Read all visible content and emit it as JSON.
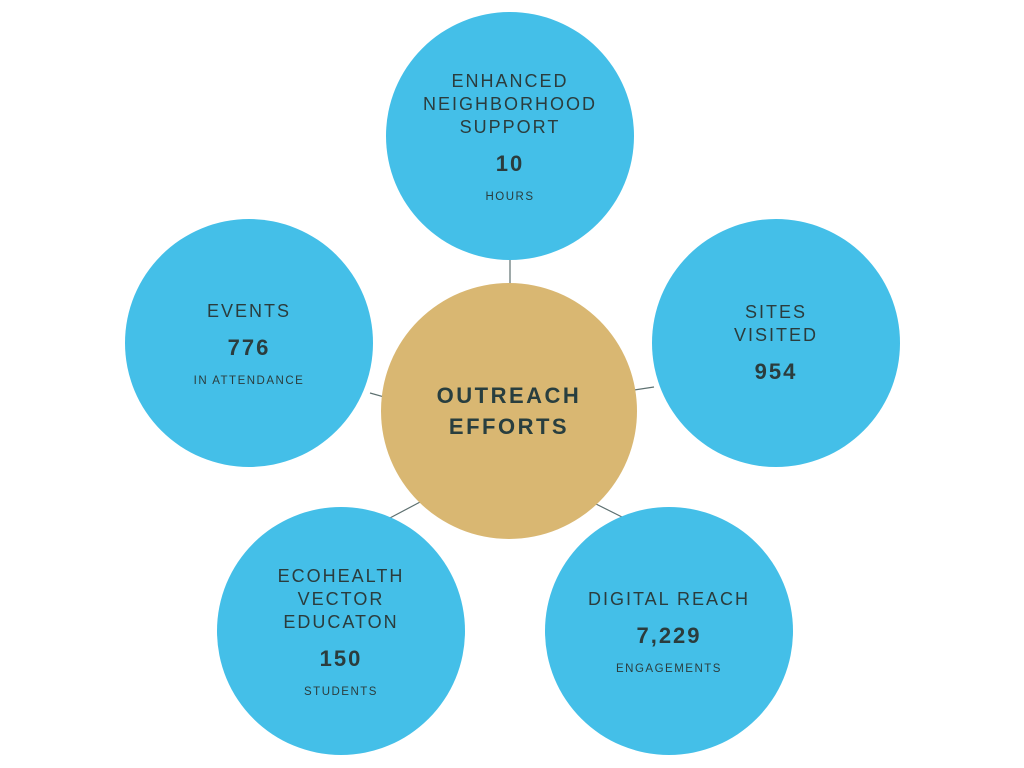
{
  "colors": {
    "node": "#44bfe8",
    "center": "#d9b772",
    "text": "#2b3c3d",
    "connector": "#5d7070"
  },
  "center": {
    "title": "OUTREACH\nEFFORTS"
  },
  "nodes": [
    {
      "title": "ENHANCED\nNEIGHBORHOOD\nSUPPORT",
      "value": "10",
      "unit": "HOURS"
    },
    {
      "title": "SITES\nVISITED",
      "value": "954",
      "unit": ""
    },
    {
      "title": "DIGITAL REACH",
      "value": "7,229",
      "unit": "ENGAGEMENTS"
    },
    {
      "title": "ECOHEALTH\nVECTOR\nEDUCATON",
      "value": "150",
      "unit": "STUDENTS"
    },
    {
      "title": "EVENTS",
      "value": "776",
      "unit": "IN ATTENDANCE"
    }
  ]
}
